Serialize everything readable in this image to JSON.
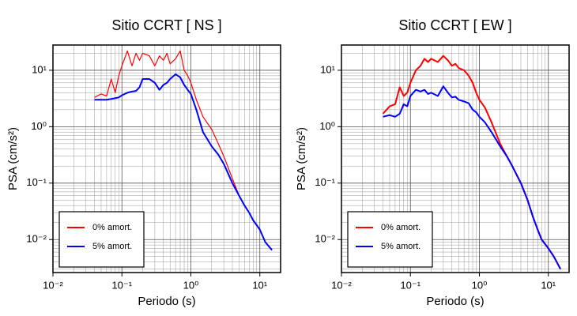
{
  "chart_data": [
    {
      "type": "line",
      "title": "Sitio CCRT [ NS ]",
      "xlabel": "Periodo (s)",
      "ylabel": "PSA (cm/s²)",
      "log_x": true,
      "log_y": true,
      "grid": true,
      "legend": "lower left",
      "xlim": [
        0.01,
        20
      ],
      "ylim": [
        0.0026,
        28
      ],
      "xticks": [
        {
          "value": 0.01,
          "label": "10⁻²"
        },
        {
          "value": 0.1,
          "label": "10⁻¹"
        },
        {
          "value": 1,
          "label": "10⁰"
        },
        {
          "value": 10,
          "label": "10¹"
        }
      ],
      "yticks": [
        {
          "value": 0.01,
          "label": "10⁻²"
        },
        {
          "value": 0.1,
          "label": "10⁻¹"
        },
        {
          "value": 1,
          "label": "10⁰"
        },
        {
          "value": 10,
          "label": "10¹"
        }
      ],
      "x": [
        0.04,
        0.05,
        0.06,
        0.07,
        0.08,
        0.09,
        0.1,
        0.12,
        0.14,
        0.16,
        0.18,
        0.2,
        0.25,
        0.3,
        0.35,
        0.4,
        0.45,
        0.5,
        0.6,
        0.7,
        0.8,
        0.9,
        1.0,
        1.2,
        1.5,
        2,
        2.5,
        3,
        4,
        5,
        6,
        7,
        8,
        10,
        12,
        15
      ],
      "series": [
        {
          "name": "0% amort.",
          "color": "#ff0000",
          "width": 1.2,
          "values": [
            3.3,
            3.8,
            3.5,
            7,
            4,
            8,
            12,
            22,
            12,
            20,
            15,
            20,
            18,
            12,
            18,
            15,
            20,
            13,
            16,
            22,
            10,
            8,
            6,
            3,
            1.5,
            0.9,
            0.5,
            0.3,
            0.12,
            0.06,
            0.04,
            0.03,
            0.022,
            0.015,
            0.009,
            0.0065
          ]
        },
        {
          "name": "5% amort.",
          "color": "#0000ff",
          "width": 2,
          "values": [
            3,
            3,
            3,
            3.1,
            3.2,
            3.3,
            3.6,
            4,
            4.2,
            4.3,
            5,
            7,
            7,
            6,
            4.5,
            5.5,
            6,
            7,
            8.5,
            7.5,
            5.5,
            4.5,
            3.8,
            2,
            0.8,
            0.45,
            0.32,
            0.22,
            0.1,
            0.06,
            0.04,
            0.03,
            0.022,
            0.015,
            0.009,
            0.0065
          ]
        }
      ]
    },
    {
      "type": "line",
      "title": "Sitio CCRT [ EW ]",
      "xlabel": "Periodo (s)",
      "ylabel": "PSA (cm/s²)",
      "log_x": true,
      "log_y": true,
      "grid": true,
      "legend": "lower left",
      "xlim": [
        0.01,
        20
      ],
      "ylim": [
        0.0026,
        28
      ],
      "xticks": [
        {
          "value": 0.01,
          "label": "10⁻²"
        },
        {
          "value": 0.1,
          "label": "10⁻¹"
        },
        {
          "value": 1,
          "label": "10⁰"
        },
        {
          "value": 10,
          "label": "10¹"
        }
      ],
      "yticks": [
        {
          "value": 0.01,
          "label": "10⁻²"
        },
        {
          "value": 0.1,
          "label": "10⁻¹"
        },
        {
          "value": 1,
          "label": "10⁰"
        },
        {
          "value": 10,
          "label": "10¹"
        }
      ],
      "x": [
        0.04,
        0.05,
        0.06,
        0.07,
        0.08,
        0.09,
        0.1,
        0.12,
        0.14,
        0.16,
        0.18,
        0.2,
        0.25,
        0.3,
        0.35,
        0.4,
        0.45,
        0.5,
        0.6,
        0.7,
        0.8,
        0.9,
        1.0,
        1.2,
        1.5,
        2,
        2.5,
        3,
        4,
        5,
        6,
        7,
        8,
        10,
        12,
        15
      ],
      "series": [
        {
          "name": "0% amort.",
          "color": "#ff0000",
          "width": 2,
          "values": [
            1.7,
            2.3,
            2.5,
            5,
            3.5,
            4,
            6,
            10,
            12,
            16,
            14,
            16,
            14,
            18,
            15,
            12,
            13,
            11,
            10,
            8,
            6,
            4,
            3,
            2.2,
            1.2,
            0.5,
            0.3,
            0.2,
            0.1,
            0.05,
            0.025,
            0.015,
            0.01,
            0.007,
            0.005,
            0.003
          ]
        },
        {
          "name": "5% amort.",
          "color": "#0000ff",
          "width": 2,
          "values": [
            1.5,
            1.6,
            1.5,
            1.7,
            2.5,
            2.3,
            3.5,
            4.5,
            4.2,
            4.5,
            3.8,
            4,
            3.5,
            5.2,
            4,
            3.3,
            3.4,
            3,
            2.8,
            2.6,
            2,
            1.8,
            1.5,
            1.2,
            0.8,
            0.45,
            0.3,
            0.2,
            0.1,
            0.05,
            0.025,
            0.015,
            0.01,
            0.007,
            0.005,
            0.003
          ]
        }
      ]
    }
  ]
}
